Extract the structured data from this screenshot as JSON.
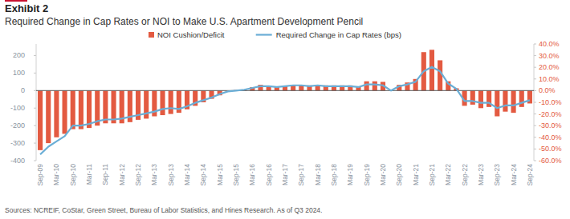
{
  "chart_data": {
    "type": "bar",
    "title": "Exhibit 2",
    "subtitle": "Required Change in Cap Rates or NOI to Make U.S. Apartment Development Pencil",
    "annotations": [
      "Sources: NCREIF, CoStar, Green Street, Bureau of Labor Statistics, and Hines Research. As of Q3 2024."
    ],
    "categories": [
      "Sep-09",
      null,
      "Mar-10",
      null,
      "Sep-10",
      null,
      "Mar-11",
      null,
      "Sep-11",
      null,
      "Mar-12",
      null,
      "Sep-12",
      null,
      "Mar-13",
      null,
      "Sep-13",
      null,
      "Mar-14",
      null,
      "Sep-14",
      null,
      "Mar-15",
      null,
      "Sep-15",
      null,
      "Mar-16",
      null,
      "Sep-16",
      null,
      "Mar-17",
      null,
      "Sep-17",
      null,
      "Mar-18",
      null,
      "Sep-18",
      null,
      "Mar-19",
      null,
      "Sep-19",
      null,
      "Mar-20",
      null,
      "Sep-20",
      null,
      "Mar-21",
      null,
      "Sep-21",
      null,
      "Mar-22",
      null,
      "Sep-22",
      null,
      "Mar-23",
      null,
      "Sep-23",
      null,
      "Mar-24",
      null,
      "Sep-24"
    ],
    "series": [
      {
        "name": "NOI Cushion/Deficit",
        "type": "bar",
        "axis": "y2",
        "color": "#e35a41",
        "values": [
          -51,
          -45,
          -40,
          -37,
          -33,
          -33,
          -32,
          -30,
          -28,
          -28,
          -28,
          -27,
          -25,
          -24,
          -22,
          -21,
          -20,
          -19,
          -16,
          -13,
          -10,
          -7,
          -4,
          -1,
          0.5,
          1,
          3,
          5,
          4,
          3,
          4,
          5,
          5,
          4.5,
          5,
          4.5,
          4.5,
          4.5,
          4.5,
          3.5,
          8,
          8,
          7.5,
          0,
          5,
          7,
          10,
          33,
          35,
          26,
          8,
          2,
          -13,
          -12,
          -15,
          -14,
          -22,
          -18,
          -19,
          -14,
          -11
        ]
      },
      {
        "name": "Required Change in Cap Rates (bps)",
        "type": "line",
        "color": "#6aaed6",
        "values": [
          -365,
          -320,
          -290,
          -260,
          -200,
          -200,
          -190,
          -175,
          -165,
          -165,
          -160,
          -150,
          -140,
          -130,
          -120,
          -105,
          -100,
          -105,
          -90,
          -70,
          -55,
          -40,
          -20,
          -5,
          0,
          5,
          15,
          25,
          25,
          20,
          25,
          30,
          30,
          25,
          30,
          25,
          25,
          25,
          25,
          20,
          35,
          35,
          30,
          0,
          25,
          35,
          50,
          110,
          135,
          110,
          40,
          10,
          -60,
          -60,
          -70,
          -70,
          -100,
          -85,
          -85,
          -70,
          -55
        ]
      }
    ],
    "ylim": [
      -400,
      266
    ],
    "yticks": [
      200,
      100,
      0,
      -100,
      -200,
      -300,
      -400
    ],
    "y2lim": [
      -60,
      40
    ],
    "y2ticks": [
      {
        "value": 40,
        "label": "40.0%"
      },
      {
        "value": 30,
        "label": "30.0%"
      },
      {
        "value": 20,
        "label": "20.0%"
      },
      {
        "value": 10,
        "label": "10.0%"
      },
      {
        "value": 0,
        "label": "0.0%"
      },
      {
        "value": -10,
        "label": "-10.0%"
      },
      {
        "value": -20,
        "label": "-20.0%"
      },
      {
        "value": -30,
        "label": "-30.0%"
      },
      {
        "value": -40,
        "label": "-40.0%"
      },
      {
        "value": -50,
        "label": "-50.0%"
      },
      {
        "value": -60,
        "label": "-60.0%"
      }
    ],
    "grid": false,
    "legend": "top"
  }
}
